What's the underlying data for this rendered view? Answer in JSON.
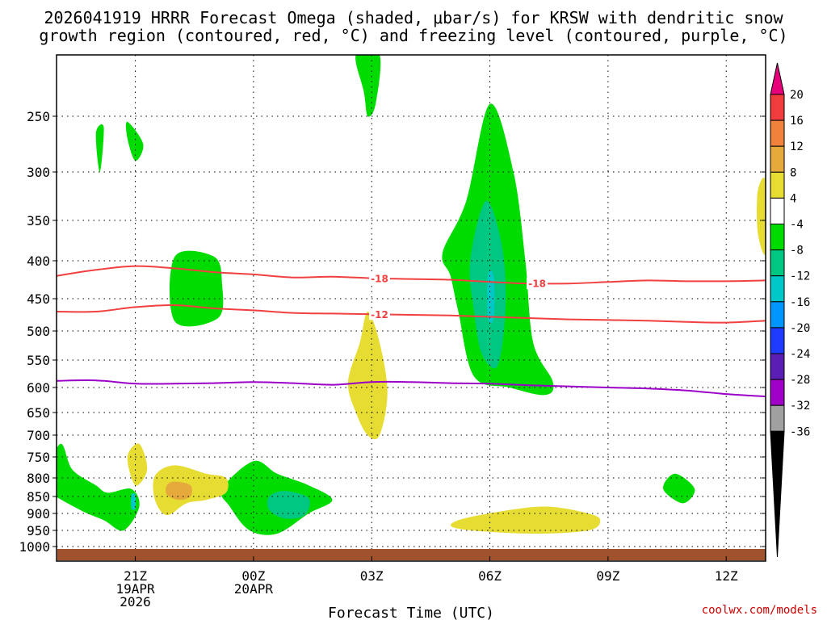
{
  "chart_data": {
    "type": "contour",
    "title_line1": "2026041919 HRRR Forecast Omega (shaded, μbar/s) for KRSW with dendritic snow",
    "title_line2": "growth region (contoured, red, °C) and freezing level (contoured, purple, °C)",
    "xlabel": "Forecast Time (UTC)",
    "credit": "coolwx.com/models",
    "x_ticks": [
      {
        "x": 21,
        "lines": [
          "21Z",
          "19APR",
          "2026"
        ]
      },
      {
        "x": 24,
        "lines": [
          "00Z",
          "20APR"
        ]
      },
      {
        "x": 27,
        "lines": [
          "03Z"
        ]
      },
      {
        "x": 30,
        "lines": [
          "06Z"
        ]
      },
      {
        "x": 33,
        "lines": [
          "09Z"
        ]
      },
      {
        "x": 36,
        "lines": [
          "12Z"
        ]
      }
    ],
    "x_range": [
      19,
      37
    ],
    "y_ticks": [
      "250",
      "300",
      "350",
      "400",
      "450",
      "500",
      "550",
      "600",
      "650",
      "700",
      "750",
      "800",
      "850",
      "900",
      "950",
      "1000"
    ],
    "y_range": [
      200,
      1010
    ],
    "colorbar_labels": [
      "20",
      "16",
      "12",
      "8",
      "4",
      "-4",
      "-8",
      "-12",
      "-16",
      "-20",
      "-24",
      "-28",
      "-32",
      "-36"
    ],
    "colorbar_colors": [
      "#f03c3c",
      "#f0823c",
      "#e6aa3c",
      "#e6dc32",
      "#ffffff",
      "#00dc00",
      "#00c882",
      "#00c8c8",
      "#0096ff",
      "#1e3cff",
      "#5a1eb4",
      "#a000c8",
      "#a0a0a0"
    ],
    "colorbar_top_color": "#e6007a",
    "colorbar_bottom_color": "#000000",
    "ground_color": "#a0522d",
    "dendritic_color": "#f04040",
    "freezing_color": "#9a00c8",
    "omega_regions": [
      {
        "level": -4,
        "color": "#00dc00",
        "points": [
          [
            20.0,
            265
          ],
          [
            20.1,
            300
          ],
          [
            20.2,
            260
          ]
        ]
      },
      {
        "level": -4,
        "color": "#00dc00",
        "points": [
          [
            20.8,
            255
          ],
          [
            21.2,
            275
          ],
          [
            21.0,
            290
          ],
          [
            20.8,
            270
          ]
        ]
      },
      {
        "level": -4,
        "color": "#00dc00",
        "points": [
          [
            22.0,
            395
          ],
          [
            23.0,
            395
          ],
          [
            23.2,
            430
          ],
          [
            23.1,
            480
          ],
          [
            22.0,
            485
          ]
        ]
      },
      {
        "level": -4,
        "color": "#00dc00",
        "points": [
          [
            26.6,
            200
          ],
          [
            27.2,
            200
          ],
          [
            27.1,
            240
          ],
          [
            26.9,
            250
          ],
          [
            26.8,
            230
          ]
        ]
      },
      {
        "level": -4,
        "color": "#00dc00",
        "points": [
          [
            28.8,
            390
          ],
          [
            29.4,
            330
          ],
          [
            30.0,
            240
          ],
          [
            30.6,
            300
          ],
          [
            30.9,
            400
          ],
          [
            31.1,
            520
          ],
          [
            31.6,
            590
          ],
          [
            31.4,
            615
          ],
          [
            30.5,
            600
          ],
          [
            29.6,
            580
          ],
          [
            29.2,
            470
          ],
          [
            29.0,
            420
          ]
        ]
      },
      {
        "level": -4,
        "color": "#00dc00",
        "points": [
          [
            18.7,
            800
          ],
          [
            19.1,
            720
          ],
          [
            19.4,
            780
          ],
          [
            20.0,
            820
          ],
          [
            20.3,
            840
          ],
          [
            20.9,
            830
          ],
          [
            21.1,
            880
          ],
          [
            20.7,
            950
          ],
          [
            20.2,
            920
          ],
          [
            19.6,
            890
          ],
          [
            18.7,
            830
          ]
        ]
      },
      {
        "level": -4,
        "color": "#00dc00",
        "points": [
          [
            23.2,
            830
          ],
          [
            24.0,
            760
          ],
          [
            24.6,
            790
          ],
          [
            25.4,
            820
          ],
          [
            26.0,
            860
          ],
          [
            25.4,
            900
          ],
          [
            24.6,
            960
          ],
          [
            23.9,
            950
          ],
          [
            23.4,
            880
          ]
        ]
      },
      {
        "level": -4,
        "color": "#00dc00",
        "points": [
          [
            34.4,
            830
          ],
          [
            34.7,
            790
          ],
          [
            35.2,
            830
          ],
          [
            34.9,
            870
          ]
        ]
      },
      {
        "level": -8,
        "color": "#00c882",
        "points": [
          [
            29.5,
            400
          ],
          [
            29.9,
            330
          ],
          [
            30.3,
            380
          ],
          [
            30.4,
            460
          ],
          [
            30.2,
            560
          ],
          [
            29.8,
            540
          ],
          [
            29.6,
            470
          ]
        ]
      },
      {
        "level": -8,
        "color": "#00c882",
        "points": [
          [
            24.4,
            850
          ],
          [
            24.8,
            835
          ],
          [
            25.4,
            855
          ],
          [
            25.3,
            905
          ],
          [
            24.8,
            915
          ],
          [
            24.4,
            890
          ]
        ]
      },
      {
        "level": -12,
        "color": "#00c8c8",
        "points": [
          [
            29.95,
            420
          ],
          [
            30.1,
            420
          ],
          [
            30.1,
            480
          ],
          [
            29.95,
            480
          ]
        ]
      },
      {
        "level": -12,
        "color": "#00c8c8",
        "points": [
          [
            20.9,
            845
          ],
          [
            21.0,
            845
          ],
          [
            21.0,
            885
          ],
          [
            20.9,
            885
          ]
        ]
      },
      {
        "level": 4,
        "color": "#e6dc32",
        "points": [
          [
            20.8,
            750
          ],
          [
            21.1,
            720
          ],
          [
            21.3,
            780
          ],
          [
            21.0,
            820
          ]
        ]
      },
      {
        "level": 4,
        "color": "#e6dc32",
        "points": [
          [
            21.5,
            795
          ],
          [
            22.0,
            770
          ],
          [
            22.8,
            790
          ],
          [
            23.3,
            800
          ],
          [
            23.3,
            840
          ],
          [
            22.8,
            860
          ],
          [
            22.3,
            870
          ],
          [
            21.8,
            905
          ],
          [
            21.5,
            860
          ]
        ]
      },
      {
        "level": 4,
        "color": "#e6dc32",
        "points": [
          [
            26.4,
            590
          ],
          [
            26.7,
            520
          ],
          [
            26.9,
            470
          ],
          [
            27.2,
            520
          ],
          [
            27.4,
            610
          ],
          [
            27.2,
            700
          ],
          [
            26.9,
            700
          ],
          [
            26.6,
            650
          ]
        ]
      },
      {
        "level": 4,
        "color": "#e6dc32",
        "points": [
          [
            29.2,
            920
          ],
          [
            30.5,
            890
          ],
          [
            31.5,
            880
          ],
          [
            32.5,
            900
          ],
          [
            32.8,
            920
          ],
          [
            32.5,
            950
          ],
          [
            31.0,
            960
          ],
          [
            29.2,
            945
          ]
        ]
      },
      {
        "level": 4,
        "color": "#e6dc32",
        "points": [
          [
            36.8,
            320
          ],
          [
            37.0,
            310
          ],
          [
            37.0,
            390
          ],
          [
            36.8,
            365
          ]
        ]
      },
      {
        "level": 8,
        "color": "#e6aa3c",
        "points": [
          [
            21.8,
            820
          ],
          [
            22.0,
            810
          ],
          [
            22.4,
            820
          ],
          [
            22.4,
            850
          ],
          [
            22.1,
            860
          ],
          [
            21.8,
            845
          ]
        ]
      }
    ],
    "dendritic_lines": [
      {
        "label": "-18",
        "points": [
          [
            19,
            420
          ],
          [
            20,
            412
          ],
          [
            21,
            407
          ],
          [
            22,
            410
          ],
          [
            23,
            415
          ],
          [
            24,
            418
          ],
          [
            25,
            422
          ],
          [
            26,
            421
          ],
          [
            27,
            423
          ],
          [
            28,
            424
          ],
          [
            29,
            425
          ],
          [
            30,
            428
          ],
          [
            31,
            430
          ],
          [
            32,
            430
          ],
          [
            33,
            428
          ],
          [
            34,
            426
          ],
          [
            35,
            427
          ],
          [
            36,
            427
          ],
          [
            37,
            426
          ]
        ],
        "label_positions": [
          27.2,
          31.2
        ]
      },
      {
        "label": "-12",
        "points": [
          [
            19,
            470
          ],
          [
            20,
            470
          ],
          [
            21,
            463
          ],
          [
            22,
            460
          ],
          [
            23,
            465
          ],
          [
            24,
            468
          ],
          [
            25,
            472
          ],
          [
            26,
            473
          ],
          [
            27,
            474
          ],
          [
            28,
            475
          ],
          [
            29,
            476
          ],
          [
            30,
            478
          ],
          [
            31,
            480
          ],
          [
            32,
            482
          ],
          [
            33,
            483
          ],
          [
            34,
            484
          ],
          [
            35,
            486
          ],
          [
            36,
            487
          ],
          [
            37,
            484
          ]
        ],
        "label_positions": [
          27.2
        ]
      }
    ],
    "freezing_line": [
      [
        19,
        588
      ],
      [
        20,
        587
      ],
      [
        21,
        593
      ],
      [
        22,
        593
      ],
      [
        23,
        592
      ],
      [
        24,
        590
      ],
      [
        25,
        592
      ],
      [
        26,
        595
      ],
      [
        27,
        590
      ],
      [
        28,
        590
      ],
      [
        29,
        592
      ],
      [
        30,
        593
      ],
      [
        31,
        596
      ],
      [
        32,
        598
      ],
      [
        33,
        600
      ],
      [
        34,
        602
      ],
      [
        35,
        606
      ],
      [
        36,
        613
      ],
      [
        37,
        618
      ]
    ]
  }
}
